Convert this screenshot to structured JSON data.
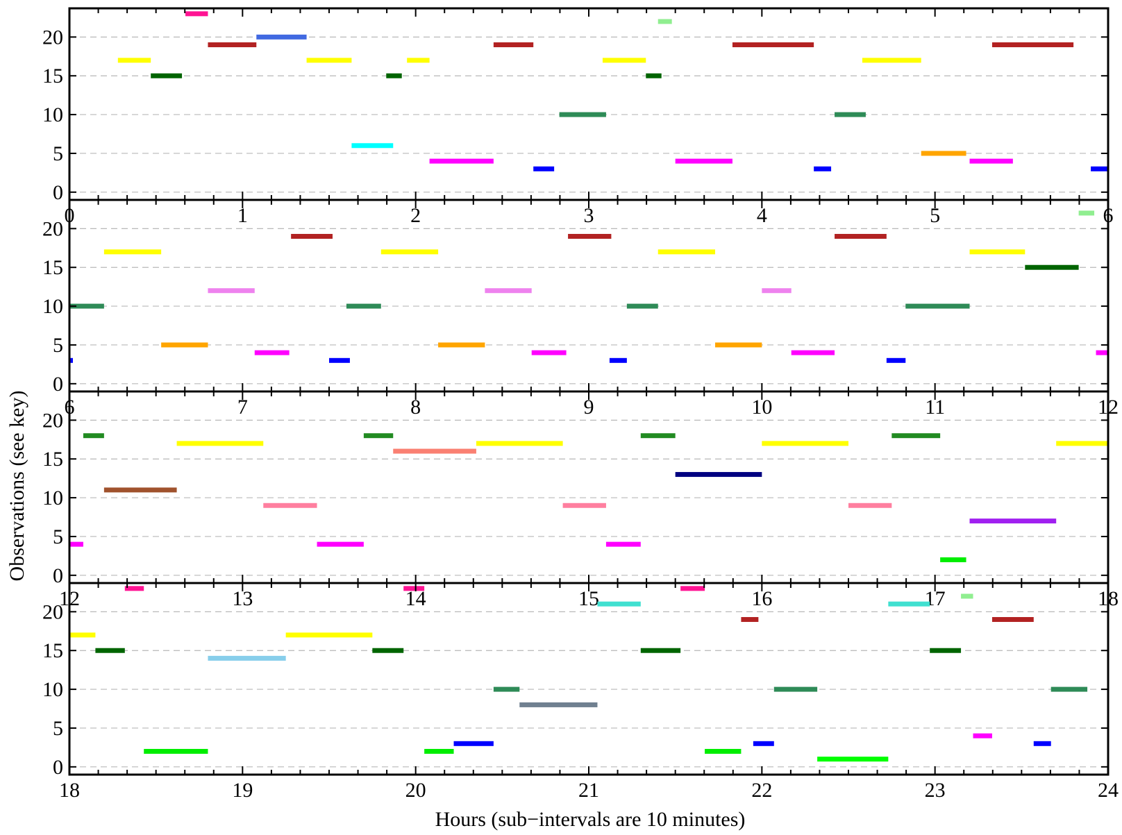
{
  "chart_data": {
    "type": "gantt",
    "title": "",
    "xlabel": "Hours (sub−intervals are 10 minutes)",
    "ylabel": "Observations (see key)",
    "ylim": [
      -1,
      23.7
    ],
    "yticks": [
      0,
      5,
      10,
      15,
      20
    ],
    "grid": "dashed horizontal at y-ticks",
    "minor_tick_interval_hours": 0.1667,
    "colors": {
      "0": "#ff0000",
      "1": "#00ff00",
      "2": "#00ee00",
      "3": "#0000ff",
      "4": "#ff00ff",
      "5": "#ffa500",
      "6": "#00ffff",
      "7": "#a020f0",
      "8": "#708090",
      "9": "#ff7f9f",
      "10": "#2e8b57",
      "11": "#a0522d",
      "12": "#ee82ee",
      "13": "#000080",
      "14": "#87ceeb",
      "15": "#006400",
      "16": "#fa8072",
      "17": "#ffff00",
      "18": "#228b22",
      "19": "#b22222",
      "20": "#4169e1",
      "21": "#40e0d0",
      "22": "#90ee90",
      "23": "#ff1493"
    },
    "panels": [
      {
        "xlim": [
          0,
          6
        ],
        "xticks": [
          "0",
          "1",
          "2",
          "3",
          "4",
          "5",
          "6"
        ],
        "bars": [
          {
            "y": 23,
            "start": 0.67,
            "end": 0.8
          },
          {
            "y": 22,
            "start": 3.4,
            "end": 3.48
          },
          {
            "y": 20,
            "start": 1.08,
            "end": 1.37
          },
          {
            "y": 19,
            "start": 0.8,
            "end": 1.08
          },
          {
            "y": 19,
            "start": 2.45,
            "end": 2.68
          },
          {
            "y": 19,
            "start": 3.83,
            "end": 4.3
          },
          {
            "y": 19,
            "start": 5.33,
            "end": 5.8
          },
          {
            "y": 17,
            "start": 0.28,
            "end": 0.47
          },
          {
            "y": 17,
            "start": 1.37,
            "end": 1.63
          },
          {
            "y": 17,
            "start": 1.95,
            "end": 2.08
          },
          {
            "y": 17,
            "start": 3.08,
            "end": 3.33
          },
          {
            "y": 17,
            "start": 4.58,
            "end": 4.92
          },
          {
            "y": 15,
            "start": 0.47,
            "end": 0.65
          },
          {
            "y": 15,
            "start": 1.83,
            "end": 1.92
          },
          {
            "y": 15,
            "start": 3.33,
            "end": 3.42
          },
          {
            "y": 10,
            "start": 2.83,
            "end": 3.1
          },
          {
            "y": 10,
            "start": 4.42,
            "end": 4.6
          },
          {
            "y": 6,
            "start": 1.63,
            "end": 1.87
          },
          {
            "y": 5,
            "start": 4.92,
            "end": 5.18
          },
          {
            "y": 4,
            "start": 2.08,
            "end": 2.45
          },
          {
            "y": 4,
            "start": 3.5,
            "end": 3.83
          },
          {
            "y": 4,
            "start": 5.2,
            "end": 5.45
          },
          {
            "y": 3,
            "start": 2.68,
            "end": 2.8
          },
          {
            "y": 3,
            "start": 4.3,
            "end": 4.4
          },
          {
            "y": 3,
            "start": 5.9,
            "end": 6.0
          }
        ]
      },
      {
        "xlim": [
          6,
          12
        ],
        "xticks": [
          "6",
          "7",
          "8",
          "9",
          "10",
          "11",
          "12"
        ],
        "bars": [
          {
            "y": 22,
            "start": 11.83,
            "end": 11.92
          },
          {
            "y": 19,
            "start": 7.28,
            "end": 7.52
          },
          {
            "y": 19,
            "start": 8.88,
            "end": 9.13
          },
          {
            "y": 19,
            "start": 10.42,
            "end": 10.72
          },
          {
            "y": 17,
            "start": 6.2,
            "end": 6.53
          },
          {
            "y": 17,
            "start": 7.8,
            "end": 8.13
          },
          {
            "y": 17,
            "start": 9.4,
            "end": 9.73
          },
          {
            "y": 17,
            "start": 11.2,
            "end": 11.52
          },
          {
            "y": 15,
            "start": 11.52,
            "end": 11.83
          },
          {
            "y": 12,
            "start": 6.8,
            "end": 7.07
          },
          {
            "y": 12,
            "start": 8.4,
            "end": 8.67
          },
          {
            "y": 12,
            "start": 10.0,
            "end": 10.17
          },
          {
            "y": 10,
            "start": 6.0,
            "end": 6.2
          },
          {
            "y": 10,
            "start": 7.6,
            "end": 7.8
          },
          {
            "y": 10,
            "start": 9.22,
            "end": 9.4
          },
          {
            "y": 10,
            "start": 10.83,
            "end": 11.2
          },
          {
            "y": 5,
            "start": 6.53,
            "end": 6.8
          },
          {
            "y": 5,
            "start": 8.13,
            "end": 8.4
          },
          {
            "y": 5,
            "start": 9.73,
            "end": 10.0
          },
          {
            "y": 4,
            "start": 7.07,
            "end": 7.27
          },
          {
            "y": 4,
            "start": 8.67,
            "end": 8.87
          },
          {
            "y": 4,
            "start": 10.17,
            "end": 10.42
          },
          {
            "y": 4,
            "start": 11.93,
            "end": 12.0
          },
          {
            "y": 3,
            "start": 6.0,
            "end": 6.02
          },
          {
            "y": 3,
            "start": 7.5,
            "end": 7.62
          },
          {
            "y": 3,
            "start": 9.12,
            "end": 9.22
          },
          {
            "y": 3,
            "start": 10.72,
            "end": 10.83
          }
        ]
      },
      {
        "xlim": [
          12,
          18
        ],
        "xticks": [
          "12",
          "13",
          "14",
          "15",
          "16",
          "17",
          "18"
        ],
        "bars": [
          {
            "y": 18,
            "start": 12.08,
            "end": 12.2
          },
          {
            "y": 18,
            "start": 13.7,
            "end": 13.87
          },
          {
            "y": 18,
            "start": 15.3,
            "end": 15.5
          },
          {
            "y": 18,
            "start": 16.75,
            "end": 17.03
          },
          {
            "y": 17,
            "start": 12.62,
            "end": 13.12
          },
          {
            "y": 17,
            "start": 14.35,
            "end": 14.85
          },
          {
            "y": 17,
            "start": 16.0,
            "end": 16.5
          },
          {
            "y": 17,
            "start": 17.7,
            "end": 18.0
          },
          {
            "y": 16,
            "start": 13.87,
            "end": 14.35
          },
          {
            "y": 13,
            "start": 15.5,
            "end": 16.0
          },
          {
            "y": 11,
            "start": 12.2,
            "end": 12.62
          },
          {
            "y": 9,
            "start": 13.12,
            "end": 13.43
          },
          {
            "y": 9,
            "start": 14.85,
            "end": 15.1
          },
          {
            "y": 9,
            "start": 16.5,
            "end": 16.75
          },
          {
            "y": 7,
            "start": 17.2,
            "end": 17.7
          },
          {
            "y": 4,
            "start": 12.0,
            "end": 12.08
          },
          {
            "y": 4,
            "start": 13.43,
            "end": 13.7
          },
          {
            "y": 4,
            "start": 15.1,
            "end": 15.3
          },
          {
            "y": 2,
            "start": 17.03,
            "end": 17.18
          }
        ]
      },
      {
        "xlim": [
          18,
          24
        ],
        "xticks": [
          "18",
          "19",
          "20",
          "21",
          "22",
          "23",
          "24"
        ],
        "bars": [
          {
            "y": 23,
            "start": 18.32,
            "end": 18.43
          },
          {
            "y": 23,
            "start": 19.93,
            "end": 20.05
          },
          {
            "y": 23,
            "start": 21.53,
            "end": 21.67
          },
          {
            "y": 22,
            "start": 23.15,
            "end": 23.22
          },
          {
            "y": 21,
            "start": 21.05,
            "end": 21.3
          },
          {
            "y": 21,
            "start": 22.73,
            "end": 22.97
          },
          {
            "y": 19,
            "start": 21.88,
            "end": 21.98
          },
          {
            "y": 19,
            "start": 23.33,
            "end": 23.57
          },
          {
            "y": 17,
            "start": 18.0,
            "end": 18.15
          },
          {
            "y": 17,
            "start": 19.25,
            "end": 19.75
          },
          {
            "y": 15,
            "start": 18.15,
            "end": 18.32
          },
          {
            "y": 15,
            "start": 19.75,
            "end": 19.93
          },
          {
            "y": 15,
            "start": 21.3,
            "end": 21.53
          },
          {
            "y": 15,
            "start": 22.97,
            "end": 23.15
          },
          {
            "y": 14,
            "start": 18.8,
            "end": 19.25
          },
          {
            "y": 10,
            "start": 20.45,
            "end": 20.6
          },
          {
            "y": 10,
            "start": 22.07,
            "end": 22.32
          },
          {
            "y": 10,
            "start": 23.67,
            "end": 23.88
          },
          {
            "y": 8,
            "start": 20.6,
            "end": 21.05
          },
          {
            "y": 4,
            "start": 23.22,
            "end": 23.33
          },
          {
            "y": 3,
            "start": 20.22,
            "end": 20.45
          },
          {
            "y": 3,
            "start": 21.95,
            "end": 22.07
          },
          {
            "y": 3,
            "start": 23.57,
            "end": 23.67
          },
          {
            "y": 2,
            "start": 18.43,
            "end": 18.8
          },
          {
            "y": 2,
            "start": 20.05,
            "end": 20.22
          },
          {
            "y": 2,
            "start": 21.67,
            "end": 21.88
          },
          {
            "y": 1,
            "start": 22.32,
            "end": 22.73
          }
        ]
      }
    ]
  }
}
